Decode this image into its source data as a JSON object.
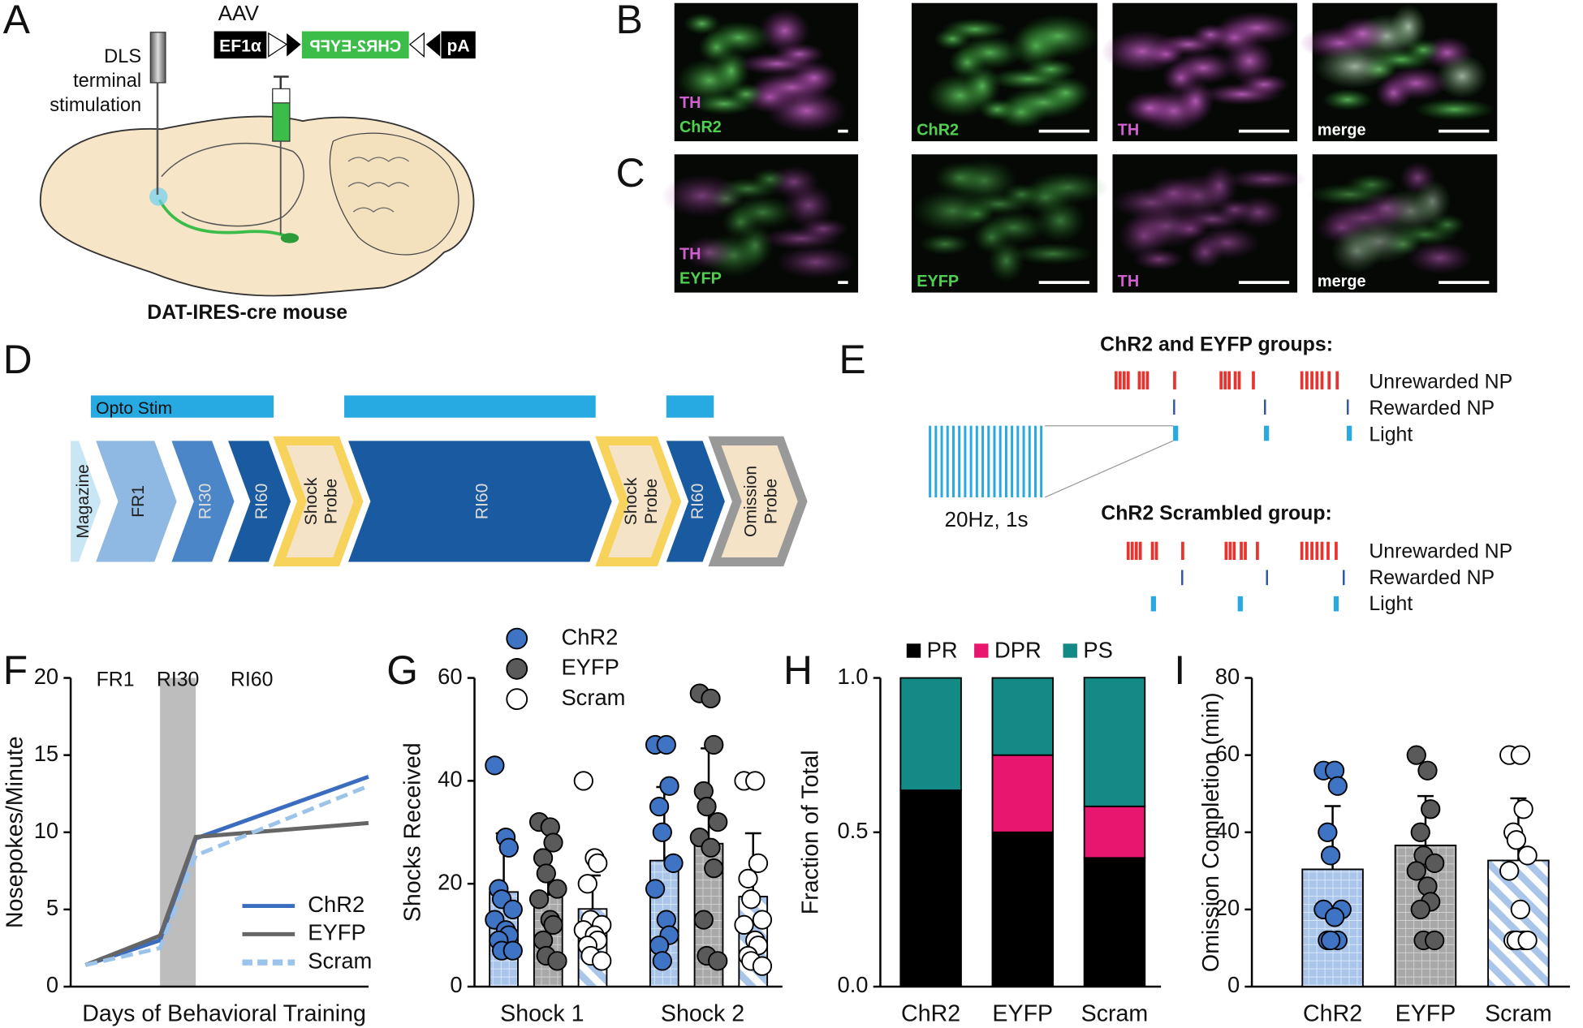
{
  "panels": {
    "letters": [
      "A",
      "B",
      "C",
      "D",
      "E",
      "F",
      "G",
      "H",
      "I"
    ],
    "a": {
      "vector": "AAV",
      "promoter": "EF1α",
      "insert": "CHR2-EYFP",
      "polya": "pA",
      "probe": [
        "DLS",
        "terminal",
        "stimulation"
      ],
      "mouse": "DAT-IRES-cre mouse"
    },
    "b": {
      "overview": [
        "TH",
        "ChR2"
      ],
      "channels": [
        "ChR2",
        "TH",
        "merge"
      ]
    },
    "c": {
      "overview": [
        "TH",
        "EYFP"
      ],
      "channels": [
        "EYFP",
        "TH",
        "merge"
      ]
    },
    "d": {
      "opto": "Opto Stim",
      "stages": [
        [
          "Magazine"
        ],
        [
          "FR1"
        ],
        [
          "RI30"
        ],
        [
          "RI60"
        ],
        [
          "Shock",
          "Probe"
        ],
        [
          "RI60"
        ],
        [
          "Shock",
          "Probe"
        ],
        [
          "RI60"
        ],
        [
          "Omission",
          "Probe"
        ]
      ]
    },
    "e": {
      "group1": "ChR2 and EYFP groups:",
      "group2": "ChR2 Scrambled group:",
      "rows": [
        "Unrewarded NP",
        "Rewarded NP",
        "Light"
      ],
      "burst": "20Hz, 1s"
    }
  },
  "chart_data": [
    {
      "type": "line",
      "xlabel": "Days of Behavioral Training",
      "ylabel": "Nosepokes/Minute",
      "x": [
        0.5,
        3,
        4.2,
        10
      ],
      "xlim": [
        0,
        10
      ],
      "ylim": [
        0,
        20
      ],
      "yticks": [
        0,
        5,
        10,
        15,
        20
      ],
      "phases": [
        {
          "label": "FR1",
          "start": 0,
          "end": 3
        },
        {
          "label": "RI30",
          "start": 3,
          "end": 4.2,
          "shaded": true
        },
        {
          "label": "RI60",
          "start": 4.2,
          "end": 10
        }
      ],
      "series": [
        {
          "name": "ChR2",
          "color": "#3a6cc0",
          "values": [
            1.4,
            3.0,
            9.6,
            13.6
          ]
        },
        {
          "name": "EYFP",
          "color": "#666666",
          "values": [
            1.4,
            3.3,
            9.7,
            10.6
          ]
        },
        {
          "name": "Scram",
          "color": "#9cc3ea",
          "dashed": true,
          "values": [
            1.4,
            2.5,
            8.5,
            13.0
          ]
        }
      ],
      "legend": "lower right"
    },
    {
      "type": "bar",
      "ylabel": "Shocks Received",
      "categories": [
        "Shock 1",
        "Shock 2"
      ],
      "ylim": [
        0,
        60
      ],
      "yticks": [
        0,
        20,
        40,
        60
      ],
      "series": [
        {
          "name": "ChR2",
          "color": "#3f73c4",
          "values": [
            18.4,
            24.5
          ],
          "errors": [
            11.4,
            14.3
          ],
          "points": [
            [
              43,
              29,
              27,
              19,
              17,
              15,
              13,
              11,
              10,
              9,
              7,
              7
            ],
            [
              47,
              47,
              39,
              35,
              30,
              24,
              19,
              13,
              10,
              8,
              5
            ]
          ]
        },
        {
          "name": "EYFP",
          "color": "#5a5a5a",
          "values": [
            17.8,
            27.8
          ],
          "errors": [
            8.9,
            18.5
          ],
          "points": [
            [
              32,
              31,
              28,
              25,
              22,
              19,
              17,
              13,
              12,
              9,
              6,
              5
            ],
            [
              57,
              56,
              47,
              38,
              35,
              32,
              29,
              27,
              23,
              13,
              6,
              5
            ]
          ]
        },
        {
          "name": "Scram",
          "color": "#ffffff",
          "values": [
            15.1,
            17.5
          ],
          "errors": [
            6.5,
            12.3
          ],
          "points": [
            [
              40,
              25,
              24,
              20,
              13,
              12,
              11,
              10,
              9,
              8,
              6,
              5
            ],
            [
              40,
              40,
              24,
              21,
              17,
              13,
              12,
              9,
              8,
              6,
              5,
              4
            ]
          ]
        }
      ]
    },
    {
      "type": "stacked_bar",
      "ylabel": "Fraction of Total",
      "categories": [
        "ChR2",
        "EYFP",
        "Scram"
      ],
      "ylim": [
        0,
        1
      ],
      "yticks": [
        {
          "value": 0,
          "label": "0.0"
        },
        0.5,
        {
          "value": 1,
          "label": "1.0"
        }
      ],
      "series": [
        {
          "name": "PR",
          "color": "#000000",
          "values": [
            0.636,
            0.5,
            0.417
          ]
        },
        {
          "name": "DPR",
          "color": "#e8166e",
          "values": [
            0,
            0.25,
            0.167
          ]
        },
        {
          "name": "PS",
          "color": "#138a85",
          "values": [
            0.364,
            0.25,
            0.417
          ]
        }
      ],
      "legend": "top"
    },
    {
      "type": "bar",
      "ylabel": "Omission Completion (min)",
      "categories": [
        "ChR2",
        "EYFP",
        "Scram"
      ],
      "ylim": [
        0,
        80
      ],
      "yticks": [
        0,
        20,
        40,
        60,
        80
      ],
      "values": [
        30.4,
        36.6,
        32.7
      ],
      "errors": [
        16.4,
        12.8,
        16.1
      ],
      "colors": [
        "#3f73c4",
        "#5a5a5a",
        "#ffffff"
      ],
      "points": [
        [
          56,
          56,
          52,
          40,
          34,
          20,
          20,
          18,
          12,
          12,
          12
        ],
        [
          60,
          56,
          46,
          40,
          34,
          32,
          30,
          26,
          22,
          20,
          12,
          12
        ],
        [
          60,
          60,
          46,
          40,
          38,
          34,
          30,
          20,
          12,
          12,
          12,
          12
        ]
      ]
    }
  ]
}
